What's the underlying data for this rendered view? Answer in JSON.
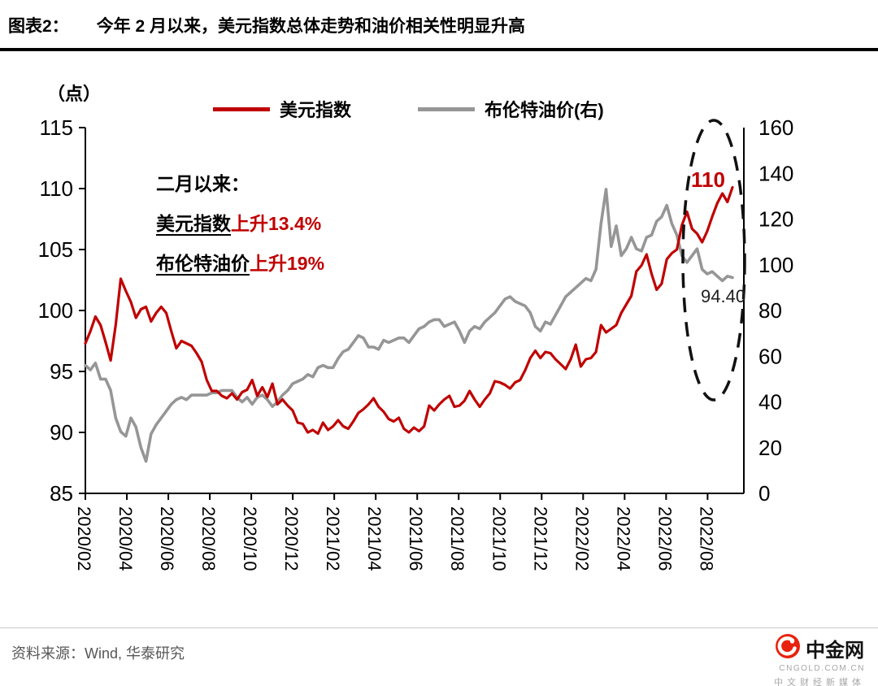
{
  "header": {
    "tag": "图表2：",
    "title": "今年 2 月以来，美元指数总体走势和油价相关性明显升高"
  },
  "footer": {
    "source": "资料来源：Wind, 华泰研究"
  },
  "logo": {
    "name": "中金网",
    "domain": "CNGOLD.COM.CN",
    "tagline": "中文财经新媒体"
  },
  "chart_data": {
    "type": "line",
    "unit_label": "（点）",
    "legend": [
      {
        "label": "美元指数",
        "color": "#c00000"
      },
      {
        "label": "布伦特油价(右)",
        "color": "#969696"
      }
    ],
    "left_axis": {
      "min": 85,
      "max": 115,
      "ticks": [
        85,
        90,
        95,
        100,
        105,
        110,
        115
      ]
    },
    "right_axis": {
      "min": 0,
      "max": 160,
      "ticks": [
        0,
        20,
        40,
        60,
        80,
        100,
        120,
        140,
        160
      ]
    },
    "x_ticks": [
      "2020/02",
      "2020/04",
      "2020/06",
      "2020/08",
      "2020/10",
      "2020/12",
      "2021/02",
      "2021/04",
      "2021/06",
      "2021/08",
      "2021/10",
      "2021/12",
      "2022/02",
      "2022/04",
      "2022/06",
      "2022/08"
    ],
    "x_tick_month_step": 2,
    "axis_months_span": 31.2,
    "annotations": {
      "intro": "二月以来：",
      "usd_name": "美元指数",
      "usd_change": "上升13.4%",
      "brent_name": "布伦特油价",
      "brent_change": "上升19%",
      "usd_end": "110",
      "brent_end": "94.40"
    },
    "series": [
      {
        "name": "布伦特油价(右)",
        "axis": "right",
        "color": "#969696",
        "width": 3.6,
        "values": [
          56,
          54,
          57,
          50,
          50,
          45,
          33,
          27,
          25,
          33,
          29,
          20,
          14,
          26,
          30,
          33,
          36,
          39,
          41,
          42,
          41,
          43,
          43,
          43,
          43,
          44,
          44,
          45,
          45,
          45,
          42,
          40,
          42,
          39,
          42,
          43,
          41,
          38,
          40,
          43,
          45,
          48,
          49,
          50,
          52,
          51,
          55,
          56,
          55,
          55,
          59,
          62,
          63,
          66,
          69,
          68,
          64,
          64,
          63,
          67,
          66,
          67,
          68,
          68,
          66,
          69,
          72,
          73,
          75,
          76,
          76,
          73,
          74,
          75,
          71,
          66,
          71,
          73,
          72,
          75,
          77,
          79,
          82,
          85,
          86,
          84,
          83,
          82,
          79,
          73,
          71,
          75,
          74,
          78,
          82,
          86,
          88,
          90,
          92,
          94,
          93,
          98,
          118,
          133,
          108,
          117,
          104,
          107,
          112,
          107,
          106,
          112,
          113,
          119,
          121,
          126,
          118,
          113,
          104,
          101,
          104,
          107,
          98,
          96,
          97,
          95,
          93,
          95,
          94.4
        ]
      },
      {
        "name": "美元指数",
        "axis": "left",
        "color": "#c00000",
        "width": 3.2,
        "values": [
          97.3,
          98.3,
          99.5,
          98.8,
          97.4,
          95.9,
          98.8,
          102.6,
          101.6,
          100.7,
          99.4,
          100.1,
          100.3,
          99.1,
          99.8,
          100.3,
          99.8,
          98.3,
          96.9,
          97.5,
          97.3,
          97.1,
          96.5,
          95.8,
          94.3,
          93.4,
          93.4,
          93.0,
          92.8,
          93.2,
          92.7,
          93.3,
          93.5,
          94.3,
          93.0,
          93.7,
          92.9,
          94.0,
          92.3,
          92.7,
          92.2,
          91.8,
          90.8,
          90.7,
          90.0,
          90.2,
          89.9,
          90.8,
          90.2,
          90.5,
          91.0,
          90.5,
          90.3,
          90.9,
          91.6,
          91.9,
          92.3,
          92.8,
          92.1,
          91.7,
          91.1,
          90.9,
          91.2,
          90.3,
          90.0,
          90.4,
          90.1,
          90.5,
          92.2,
          91.8,
          92.3,
          92.7,
          93.0,
          92.1,
          92.2,
          92.6,
          93.4,
          92.7,
          92.1,
          92.7,
          93.2,
          94.2,
          94.1,
          93.9,
          93.6,
          94.1,
          94.3,
          95.1,
          96.1,
          96.7,
          96.1,
          96.6,
          96.5,
          96.0,
          95.6,
          95.2,
          96.0,
          97.2,
          95.4,
          96.0,
          96.1,
          96.6,
          98.8,
          98.2,
          98.5,
          98.8,
          99.8,
          100.5,
          101.2,
          103.2,
          103.7,
          104.6,
          103.0,
          101.7,
          102.2,
          104.2,
          104.7,
          105.0,
          107.0,
          108.1,
          106.7,
          106.3,
          105.6,
          106.5,
          107.7,
          108.8,
          109.6,
          108.9,
          110.1
        ]
      }
    ]
  }
}
